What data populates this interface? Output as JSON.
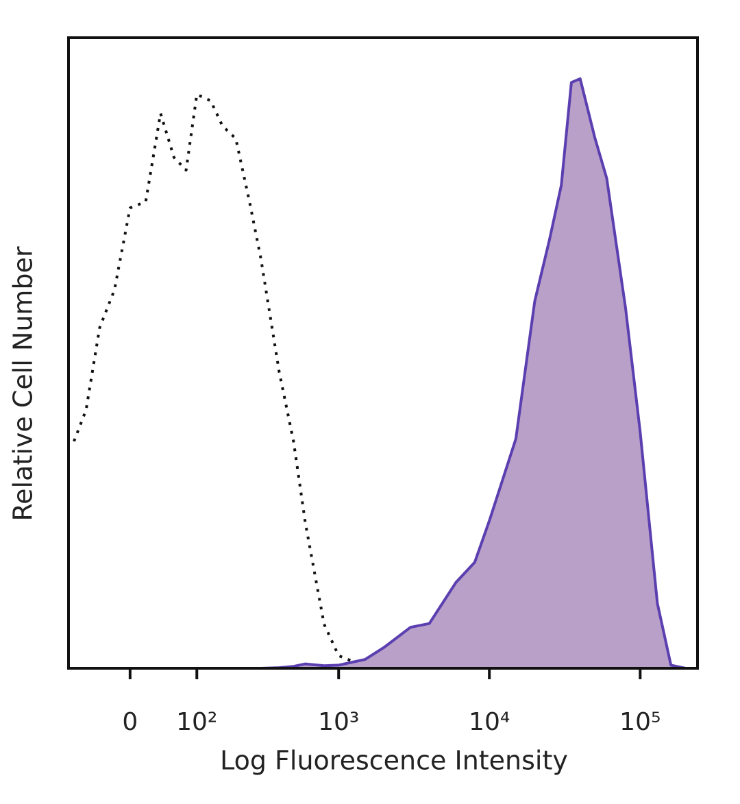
{
  "chart_data": {
    "type": "histogram-overlay",
    "xlabel": "Log Fluorescence Intensity",
    "ylabel": "Relative Cell Number",
    "xscale": "arcsinh",
    "x": [
      -80,
      -60,
      -40,
      -20,
      0,
      20,
      40,
      60,
      80,
      100,
      130,
      160,
      200,
      250,
      300,
      400,
      500,
      600,
      800,
      1000,
      1500,
      2000,
      3000,
      4000,
      6000,
      8000,
      10000,
      15000,
      20000,
      25000,
      30000,
      35000,
      40000,
      50000,
      60000,
      80000,
      100000,
      130000,
      160000,
      200000
    ],
    "series": [
      {
        "color": "#111111",
        "line_style": "dotted",
        "filled": false,
        "values": [
          36,
          41,
          54,
          60,
          73,
          74,
          88,
          81,
          79,
          91,
          90,
          86,
          84,
          74,
          65,
          47,
          36,
          23,
          7,
          2,
          0.3,
          0,
          0,
          0,
          0,
          0,
          0,
          0,
          0,
          0,
          0,
          0,
          0,
          0,
          0,
          0,
          0,
          0,
          0,
          0
        ]
      },
      {
        "color": "#5b3fb0",
        "fill_color": "#b9a0c8",
        "line_style": "solid",
        "filled": true,
        "values": [
          0,
          0,
          0,
          0,
          0,
          0,
          0,
          0,
          0,
          0,
          0,
          0,
          0,
          0,
          0,
          0.1,
          0.3,
          0.7,
          0.4,
          0.5,
          1.4,
          3.3,
          6.5,
          7.1,
          13.6,
          16.8,
          23.4,
          36.4,
          58.2,
          67.9,
          76.6,
          92.9,
          93.5,
          84.2,
          77.7,
          57.1,
          37.5,
          10.3,
          0.5,
          0
        ]
      }
    ],
    "xlim": [
      -90,
      240000
    ],
    "ylim": [
      0,
      100
    ],
    "xticks": [
      0,
      {
        "value": 100,
        "label": "10²"
      },
      {
        "value": 1000,
        "label": "10³"
      },
      {
        "value": 10000,
        "label": "10⁴"
      },
      {
        "value": 100000,
        "label": "10⁵"
      }
    ]
  }
}
